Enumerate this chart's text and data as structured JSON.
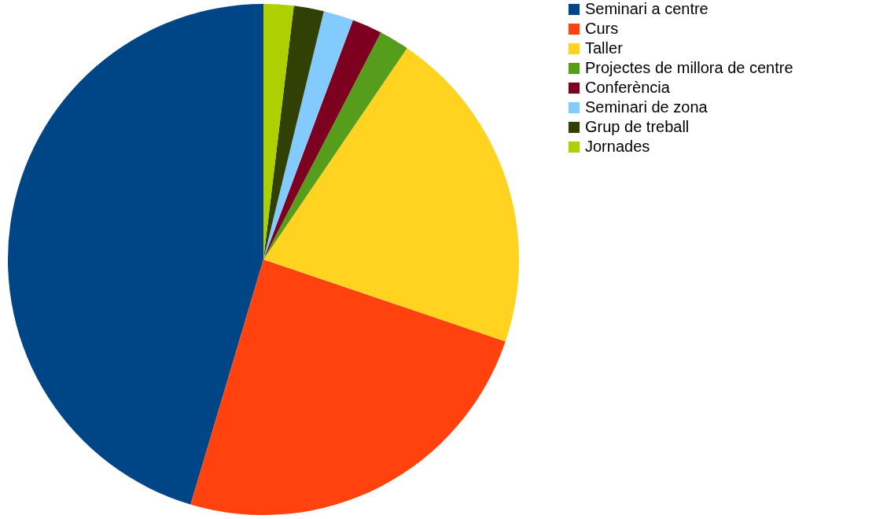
{
  "chart_data": {
    "type": "pie",
    "categories": [
      "Seminari a centre",
      "Curs",
      "Taller",
      "Projectes de millora de centre",
      "Conferència",
      "Seminari de zona",
      "Grup de treball",
      "Jornades"
    ],
    "values": [
      45.4,
      24.4,
      20.7,
      1.9,
      1.9,
      1.9,
      1.9,
      1.9
    ],
    "colors": [
      "#004586",
      "#ff420e",
      "#ffd320",
      "#579d1c",
      "#7e0021",
      "#83caff",
      "#314004",
      "#aecf00"
    ],
    "legend": "right"
  }
}
